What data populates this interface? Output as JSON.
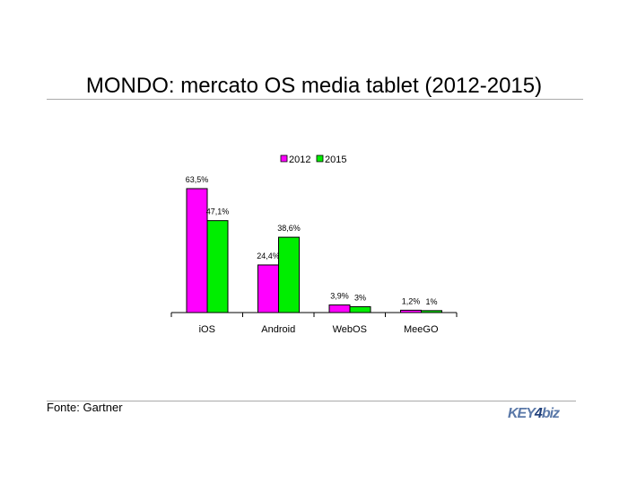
{
  "chart_data": {
    "type": "bar",
    "title": "MONDO: mercato OS media tablet (2012-2015)",
    "categories": [
      "iOS",
      "Android",
      "WebOS",
      "MeeGO"
    ],
    "series": [
      {
        "name": "2012",
        "color": "#ff00ff",
        "values": [
          63.5,
          24.4,
          3.9,
          1.2
        ],
        "labels": [
          "63,5%",
          "24,4%",
          "3,9%",
          "1,2%"
        ]
      },
      {
        "name": "2015",
        "color": "#00ee00",
        "values": [
          47.1,
          38.6,
          3,
          1
        ],
        "labels": [
          "47,1%",
          "38,6%",
          "3%",
          "1%"
        ]
      }
    ],
    "xlabel": "",
    "ylabel": "",
    "ylim": [
      0,
      70
    ],
    "grid": false,
    "legend": "top"
  },
  "footer": {
    "source": "Fonte: Gartner",
    "logo": "KEY4biz"
  }
}
